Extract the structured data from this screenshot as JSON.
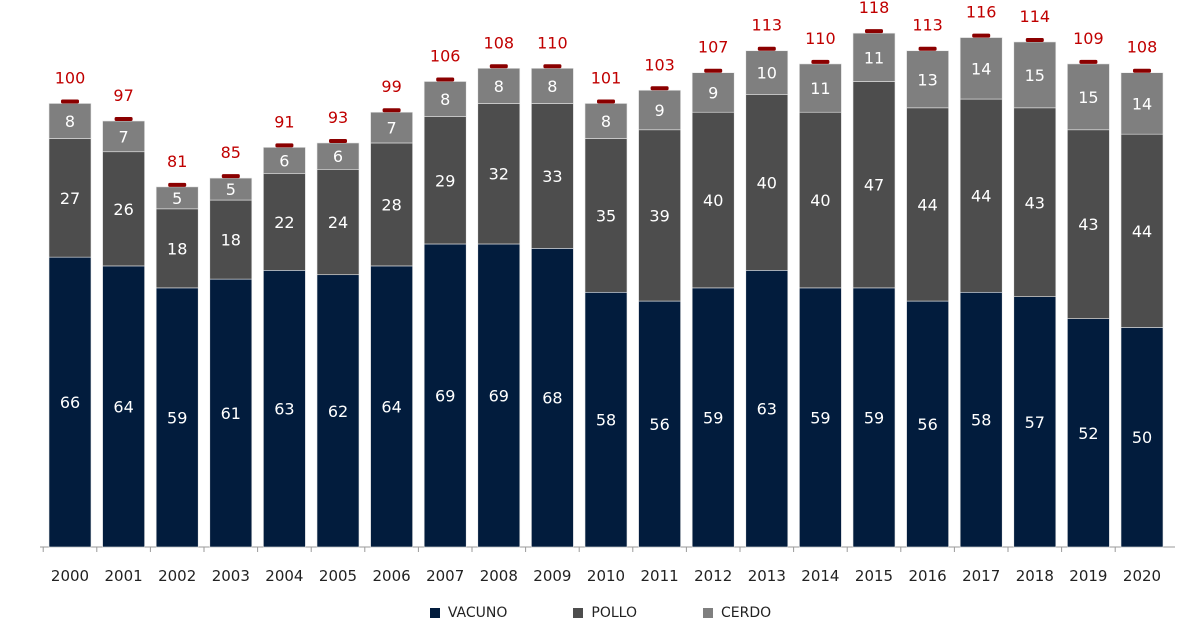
{
  "chart_data": {
    "type": "bar",
    "stacked": true,
    "categories": [
      "2000",
      "2001",
      "2002",
      "2003",
      "2004",
      "2005",
      "2006",
      "2007",
      "2008",
      "2009",
      "2010",
      "2011",
      "2012",
      "2013",
      "2014",
      "2015",
      "2016",
      "2017",
      "2018",
      "2019",
      "2020"
    ],
    "series": [
      {
        "name": "VACUNO",
        "color": "#021c3d",
        "label_color": "#ffffff",
        "values": [
          66,
          64,
          59,
          61,
          63,
          62,
          64,
          69,
          69,
          68,
          58,
          56,
          59,
          63,
          59,
          59,
          56,
          58,
          57,
          52,
          50
        ]
      },
      {
        "name": "POLLO",
        "color": "#4d4d4d",
        "label_color": "#ffffff",
        "values": [
          27,
          26,
          18,
          18,
          22,
          24,
          28,
          29,
          32,
          33,
          35,
          39,
          40,
          40,
          40,
          47,
          44,
          44,
          43,
          43,
          44
        ]
      },
      {
        "name": "CERDO",
        "color": "#7f7f7f",
        "label_color": "#ffffff",
        "values": [
          8,
          7,
          5,
          5,
          6,
          6,
          7,
          8,
          8,
          8,
          8,
          9,
          9,
          10,
          11,
          11,
          13,
          14,
          15,
          15,
          14
        ]
      }
    ],
    "totals": [
      100,
      97,
      81,
      85,
      91,
      93,
      99,
      106,
      108,
      110,
      101,
      103,
      107,
      113,
      110,
      118,
      113,
      116,
      114,
      109,
      108
    ],
    "total_label_color": "#c00000",
    "cap_color": "#8b0000",
    "ylim": [
      0,
      120
    ],
    "grid": false,
    "legend_position": "bottom"
  }
}
